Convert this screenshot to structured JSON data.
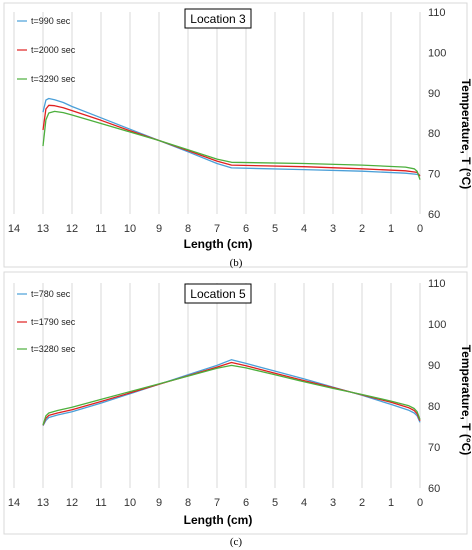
{
  "chart_data": [
    {
      "type": "line",
      "title": "Location 3",
      "caption": "(b)",
      "xlabel": "Length (cm)",
      "ylabel": "Temperature, T (°C)",
      "xlim": [
        14,
        0
      ],
      "ylim": [
        60,
        110
      ],
      "x_ticks": [
        14,
        13,
        12,
        11,
        10,
        9,
        8,
        7,
        6,
        5,
        4,
        3,
        2,
        1,
        0
      ],
      "y_ticks": [
        60,
        70,
        80,
        90,
        100,
        110
      ],
      "grid": "vertical",
      "legend_position": "top-left",
      "series": [
        {
          "name": "t=990 sec",
          "color": "#4a9fd8",
          "x": [
            13.0,
            12.9,
            12.8,
            12.6,
            12.3,
            12.0,
            11.0,
            10.0,
            9.0,
            8.0,
            7.0,
            6.5,
            4.0,
            2.0,
            0.5,
            0.1,
            0.0
          ],
          "y": [
            85.2,
            88.2,
            88.6,
            88.3,
            87.6,
            86.6,
            83.8,
            81.0,
            78.2,
            75.4,
            72.5,
            71.4,
            71.0,
            70.6,
            70.1,
            69.8,
            69.5
          ]
        },
        {
          "name": "t=2000 sec",
          "color": "#e02020",
          "x": [
            13.0,
            12.9,
            12.8,
            12.6,
            12.3,
            12.0,
            11.0,
            10.0,
            9.0,
            8.0,
            7.0,
            6.5,
            4.0,
            2.0,
            0.5,
            0.1,
            0.0
          ],
          "y": [
            80.8,
            86.0,
            86.9,
            86.8,
            86.3,
            85.6,
            83.2,
            80.6,
            78.2,
            75.7,
            73.1,
            72.1,
            71.7,
            71.2,
            70.7,
            70.3,
            69.4
          ]
        },
        {
          "name": "t=3290 sec",
          "color": "#4caf3c",
          "x": [
            13.0,
            12.9,
            12.8,
            12.6,
            12.3,
            12.0,
            11.0,
            10.0,
            9.0,
            8.0,
            7.0,
            6.5,
            4.0,
            2.0,
            0.5,
            0.2,
            0.1,
            0.0
          ],
          "y": [
            76.8,
            83.3,
            85.0,
            85.4,
            85.1,
            84.5,
            82.4,
            80.3,
            78.2,
            75.9,
            73.6,
            72.8,
            72.5,
            72.1,
            71.6,
            71.2,
            70.6,
            68.5
          ]
        }
      ]
    },
    {
      "type": "line",
      "title": "Location 5",
      "caption": "(c)",
      "xlabel": "Length (cm)",
      "ylabel": "Temperature, T (°C)",
      "xlim": [
        14,
        0
      ],
      "ylim": [
        60,
        110
      ],
      "x_ticks": [
        14,
        13,
        12,
        11,
        10,
        9,
        8,
        7,
        6,
        5,
        4,
        3,
        2,
        1,
        0
      ],
      "y_ticks": [
        60,
        70,
        80,
        90,
        100,
        110
      ],
      "grid": "vertical",
      "legend_position": "top-left",
      "series": [
        {
          "name": "t=780 sec",
          "color": "#4a9fd8",
          "x": [
            13.0,
            12.9,
            12.8,
            12.5,
            12.0,
            11.0,
            10.0,
            9.0,
            8.0,
            7.0,
            6.5,
            6.0,
            5.0,
            4.0,
            3.0,
            2.0,
            1.0,
            0.4,
            0.2,
            0.1,
            0.0
          ],
          "y": [
            75.2,
            76.5,
            77.2,
            77.8,
            78.6,
            80.7,
            83.0,
            85.3,
            87.6,
            89.9,
            91.3,
            90.4,
            88.5,
            86.6,
            84.6,
            82.6,
            80.4,
            79.0,
            78.3,
            77.6,
            76.0
          ]
        },
        {
          "name": "t=1790 sec",
          "color": "#e02020",
          "x": [
            13.0,
            12.9,
            12.8,
            12.5,
            12.0,
            11.0,
            10.0,
            9.0,
            8.0,
            7.0,
            6.5,
            6.0,
            5.0,
            4.0,
            3.0,
            2.0,
            1.0,
            0.4,
            0.2,
            0.1,
            0.0
          ],
          "y": [
            75.3,
            77.0,
            77.7,
            78.3,
            79.1,
            81.1,
            83.2,
            85.3,
            87.4,
            89.5,
            90.6,
            89.8,
            88.0,
            86.2,
            84.5,
            82.7,
            80.9,
            79.6,
            78.9,
            78.1,
            76.4
          ]
        },
        {
          "name": "t=3280 sec",
          "color": "#4caf3c",
          "x": [
            13.0,
            12.9,
            12.8,
            12.5,
            12.0,
            11.0,
            10.0,
            9.0,
            8.0,
            7.0,
            6.5,
            6.0,
            5.0,
            4.0,
            3.0,
            2.0,
            1.0,
            0.4,
            0.2,
            0.1,
            0.0
          ],
          "y": [
            75.4,
            77.6,
            78.3,
            78.9,
            79.7,
            81.6,
            83.5,
            85.4,
            87.3,
            89.2,
            89.9,
            89.3,
            87.6,
            85.9,
            84.3,
            82.8,
            81.2,
            80.1,
            79.4,
            78.6,
            76.7
          ]
        }
      ]
    }
  ]
}
